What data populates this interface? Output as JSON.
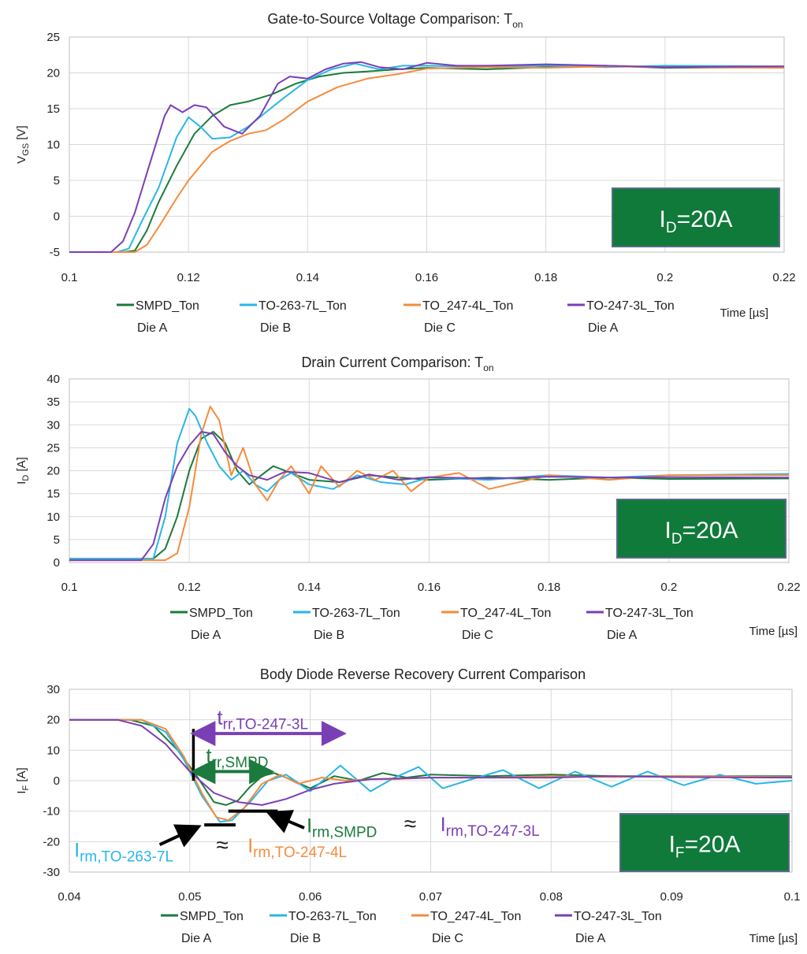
{
  "chart_data": [
    {
      "type": "line",
      "title": "Gate-to-Source Voltage Comparison: T",
      "title_sub": "on",
      "ylabel": "V",
      "ylabel_sub": "GS",
      "ylabel_unit": " [V]",
      "xlabel": "Time [µs]",
      "xlim": [
        0.1,
        0.22
      ],
      "ylim": [
        -5,
        25
      ],
      "xticks": [
        0.1,
        0.12,
        0.14,
        0.16,
        0.18,
        0.2,
        0.22
      ],
      "yticks": [
        -5,
        0,
        5,
        10,
        15,
        20,
        25
      ],
      "grid": true,
      "box_label": {
        "main": "I",
        "sub": "D",
        "rest": "=20A"
      },
      "series": [
        {
          "name": "SMPD_Ton",
          "die": "Die A",
          "color": "#1b7a3c",
          "x": [
            0.1,
            0.109,
            0.111,
            0.113,
            0.115,
            0.118,
            0.121,
            0.124,
            0.127,
            0.13,
            0.134,
            0.138,
            0.142,
            0.146,
            0.15,
            0.155,
            0.16,
            0.17,
            0.18,
            0.19,
            0.2,
            0.22
          ],
          "y": [
            -5,
            -5,
            -4.8,
            -2,
            2,
            7,
            11.5,
            14,
            15.5,
            16,
            17,
            18.5,
            19.5,
            20,
            20.2,
            20.5,
            20.7,
            20.5,
            20.8,
            21,
            20.7,
            20.8
          ]
        },
        {
          "name": "TO-263-7L_Ton",
          "die": "Die B",
          "color": "#29b6e8",
          "x": [
            0.1,
            0.108,
            0.11,
            0.112,
            0.115,
            0.118,
            0.12,
            0.122,
            0.124,
            0.127,
            0.13,
            0.133,
            0.136,
            0.14,
            0.144,
            0.148,
            0.152,
            0.156,
            0.16,
            0.17,
            0.18,
            0.19,
            0.2,
            0.22
          ],
          "y": [
            -5,
            -5,
            -4.5,
            -1,
            4,
            11,
            13.8,
            12.5,
            10.8,
            11,
            12.5,
            14.5,
            16.5,
            19,
            20.5,
            21.3,
            20.5,
            21,
            21,
            20.8,
            21,
            20.8,
            21,
            20.9
          ]
        },
        {
          "name": "TO_247-4L_Ton",
          "die": "Die C",
          "color": "#f58b3c",
          "x": [
            0.1,
            0.111,
            0.113,
            0.115,
            0.118,
            0.12,
            0.122,
            0.124,
            0.127,
            0.13,
            0.133,
            0.136,
            0.14,
            0.145,
            0.15,
            0.155,
            0.16,
            0.165,
            0.17,
            0.18,
            0.19,
            0.2,
            0.22
          ],
          "y": [
            -5,
            -5,
            -4,
            -1.5,
            2.5,
            5,
            7,
            9,
            10.5,
            11.5,
            12,
            13.5,
            16,
            18,
            19.2,
            19.8,
            20.6,
            20.7,
            20.8,
            20.7,
            20.9,
            20.8,
            20.7
          ]
        },
        {
          "name": "TO-247-3L_Ton",
          "die": "Die A",
          "color": "#7b3fb5",
          "x": [
            0.1,
            0.107,
            0.109,
            0.111,
            0.113,
            0.116,
            0.117,
            0.119,
            0.121,
            0.123,
            0.126,
            0.129,
            0.132,
            0.135,
            0.137,
            0.14,
            0.143,
            0.146,
            0.149,
            0.152,
            0.156,
            0.16,
            0.165,
            0.17,
            0.18,
            0.19,
            0.2,
            0.22
          ],
          "y": [
            -5,
            -5,
            -3.5,
            0.5,
            6,
            14,
            15.5,
            14.5,
            15.5,
            15.2,
            12.5,
            11.5,
            14,
            18.5,
            19.5,
            19.2,
            20.5,
            21.3,
            21.5,
            20.8,
            20.5,
            21.4,
            21,
            21,
            21.2,
            21,
            20.8,
            20.9
          ]
        }
      ]
    },
    {
      "type": "line",
      "title": "Drain Current Comparison: T",
      "title_sub": "on",
      "ylabel": "I",
      "ylabel_sub": "D",
      "ylabel_unit": " [A]",
      "xlabel": "Time [µs]",
      "xlim": [
        0.1,
        0.22
      ],
      "ylim": [
        0,
        40
      ],
      "xticks": [
        0.1,
        0.12,
        0.14,
        0.16,
        0.18,
        0.2,
        0.22
      ],
      "yticks": [
        0,
        5,
        10,
        15,
        20,
        25,
        30,
        35,
        40
      ],
      "grid": true,
      "box_label": {
        "main": "I",
        "sub": "D",
        "rest": "=20A"
      },
      "series": [
        {
          "name": "SMPD_Ton",
          "die": "Die A",
          "color": "#1b7a3c",
          "x": [
            0.1,
            0.114,
            0.116,
            0.118,
            0.12,
            0.122,
            0.124,
            0.126,
            0.128,
            0.13,
            0.132,
            0.134,
            0.136,
            0.14,
            0.145,
            0.15,
            0.155,
            0.16,
            0.17,
            0.18,
            0.19,
            0.2,
            0.22
          ],
          "y": [
            0.8,
            0.8,
            3,
            10,
            20,
            27,
            28.5,
            26,
            20,
            17,
            19,
            21,
            20,
            18,
            17.5,
            19,
            18.5,
            18,
            18.5,
            18,
            18.5,
            18.2,
            18.3
          ]
        },
        {
          "name": "TO-263-7L_Ton",
          "die": "Die B",
          "color": "#29b6e8",
          "x": [
            0.1,
            0.114,
            0.116,
            0.118,
            0.12,
            0.121,
            0.123,
            0.125,
            0.127,
            0.129,
            0.131,
            0.133,
            0.135,
            0.137,
            0.14,
            0.144,
            0.148,
            0.152,
            0.156,
            0.16,
            0.17,
            0.18,
            0.19,
            0.2,
            0.22
          ],
          "y": [
            0.8,
            0.8,
            10,
            26,
            33.5,
            32,
            26,
            21,
            18,
            20,
            17,
            15.5,
            18,
            19.5,
            17,
            16,
            19,
            17.5,
            17,
            18.5,
            18,
            19,
            18.5,
            19,
            19.3
          ]
        },
        {
          "name": "TO_247-4L_Ton",
          "die": "Die C",
          "color": "#f58b3c",
          "x": [
            0.1,
            0.116,
            0.118,
            0.12,
            0.122,
            0.1235,
            0.125,
            0.127,
            0.129,
            0.131,
            0.133,
            0.135,
            0.137,
            0.14,
            0.142,
            0.145,
            0.148,
            0.151,
            0.154,
            0.157,
            0.16,
            0.165,
            0.17,
            0.18,
            0.19,
            0.2,
            0.22
          ],
          "y": [
            0.5,
            0.5,
            2,
            12,
            28,
            34,
            31,
            19,
            25,
            17,
            13.5,
            18,
            21,
            15,
            21,
            16.5,
            20,
            18,
            20,
            15.5,
            18.5,
            19.5,
            16,
            19,
            18,
            19,
            19
          ]
        },
        {
          "name": "TO-247-3L_Ton",
          "die": "Die A",
          "color": "#7b3fb5",
          "x": [
            0.1,
            0.112,
            0.114,
            0.116,
            0.118,
            0.12,
            0.122,
            0.124,
            0.126,
            0.128,
            0.13,
            0.133,
            0.136,
            0.14,
            0.145,
            0.15,
            0.155,
            0.16,
            0.17,
            0.18,
            0.19,
            0.2,
            0.22
          ],
          "y": [
            0.5,
            0.5,
            4,
            14,
            21,
            25.5,
            28.5,
            28,
            24,
            21,
            19,
            18,
            19.8,
            19.5,
            17.5,
            19.2,
            18,
            18.6,
            18.3,
            18.7,
            18.5,
            18.6,
            18.5
          ]
        }
      ]
    },
    {
      "type": "line",
      "title": "Body Diode Reverse Recovery Current Comparison",
      "title_sub": "",
      "ylabel": "I",
      "ylabel_sub": "F",
      "ylabel_unit": " [A]",
      "xlabel": "Time [µs]",
      "xlim": [
        0.04,
        0.1
      ],
      "ylim": [
        -30,
        30
      ],
      "xticks": [
        0.04,
        0.05,
        0.06,
        0.07,
        0.08,
        0.09,
        0.1
      ],
      "yticks": [
        -30,
        -20,
        -10,
        0,
        10,
        20,
        30
      ],
      "grid": true,
      "box_label": {
        "main": "I",
        "sub": "F",
        "rest": "=20A"
      },
      "series": [
        {
          "name": "SMPD_Ton",
          "die": "Die A",
          "color": "#1b7a3c",
          "x": [
            0.04,
            0.045,
            0.047,
            0.049,
            0.0505,
            0.052,
            0.053,
            0.054,
            0.055,
            0.056,
            0.057,
            0.058,
            0.06,
            0.062,
            0.064,
            0.066,
            0.068,
            0.07,
            0.075,
            0.08,
            0.085,
            0.09,
            0.1
          ],
          "y": [
            20,
            20,
            18,
            10,
            2,
            -7,
            -8,
            -6.5,
            -2,
            1.5,
            2.5,
            1,
            -2.5,
            1.5,
            0,
            2.5,
            1,
            2,
            1.5,
            2,
            1.5,
            1.5,
            1.5
          ]
        },
        {
          "name": "TO-263-7L_Ton",
          "die": "Die B",
          "color": "#29b6e8",
          "x": [
            0.04,
            0.046,
            0.048,
            0.0495,
            0.051,
            0.0525,
            0.0535,
            0.055,
            0.0565,
            0.058,
            0.06,
            0.0625,
            0.065,
            0.067,
            0.069,
            0.071,
            0.073,
            0.076,
            0.079,
            0.082,
            0.085,
            0.088,
            0.091,
            0.094,
            0.097,
            0.1
          ],
          "y": [
            20,
            20,
            16,
            7,
            -5,
            -13.5,
            -13,
            -7,
            0,
            2,
            -3.5,
            5,
            -3.5,
            1,
            4.5,
            -2.5,
            0,
            3.5,
            -2.5,
            3,
            -2,
            3,
            -1.5,
            2,
            -1,
            0
          ]
        },
        {
          "name": "TO_247-4L_Ton",
          "die": "Die C",
          "color": "#f58b3c",
          "x": [
            0.04,
            0.046,
            0.048,
            0.0495,
            0.051,
            0.0522,
            0.0532,
            0.0545,
            0.056,
            0.0575,
            0.059,
            0.061,
            0.063,
            0.065,
            0.067,
            0.07,
            0.075,
            0.08,
            0.085,
            0.09,
            0.1
          ],
          "y": [
            20,
            20,
            17,
            8,
            -4,
            -12,
            -13,
            -9,
            -1,
            2,
            -1,
            1,
            0,
            0.5,
            0.5,
            1,
            1,
            1.5,
            1.2,
            1.5,
            1.2
          ]
        },
        {
          "name": "TO-247-3L_Ton",
          "die": "Die A",
          "color": "#7b3fb5",
          "x": [
            0.04,
            0.044,
            0.046,
            0.048,
            0.05,
            0.052,
            0.054,
            0.056,
            0.058,
            0.06,
            0.062,
            0.065,
            0.07,
            0.075,
            0.08,
            0.085,
            0.09,
            0.1
          ],
          "y": [
            20,
            20,
            18,
            12,
            3,
            -4,
            -7,
            -8,
            -6,
            -3,
            -1,
            0.5,
            1,
            1,
            1,
            1.5,
            1.2,
            1
          ]
        }
      ],
      "annotations": {
        "trr_label_3l": {
          "main": "t",
          "sub": "rr,TO-247-3L",
          "color": "#7b3fb5"
        },
        "trr_label_smpd": {
          "main": "t",
          "sub": "rr,SMPD",
          "color": "#1b7a3c"
        },
        "irm_smpd": {
          "main": "I",
          "sub": "rm,SMPD",
          "color": "#1b7a3c"
        },
        "irm_to247_3l": {
          "main": "I",
          "sub": "rm,TO-247-3L",
          "color": "#7b3fb5"
        },
        "irm_to263": {
          "main": "I",
          "sub": "rm,TO-263-7L",
          "color": "#29b6e8"
        },
        "irm_to247_4l": {
          "main": "I",
          "sub": "rm,TO-247-4L",
          "color": "#f58b3c"
        },
        "approx": "≈",
        "trr_start_x": 0.0503,
        "trr_3l_end_x": 0.0625,
        "trr_smpd_end_x": 0.0565,
        "irm_level_1": -10,
        "irm_level_2": -14.5
      }
    }
  ]
}
